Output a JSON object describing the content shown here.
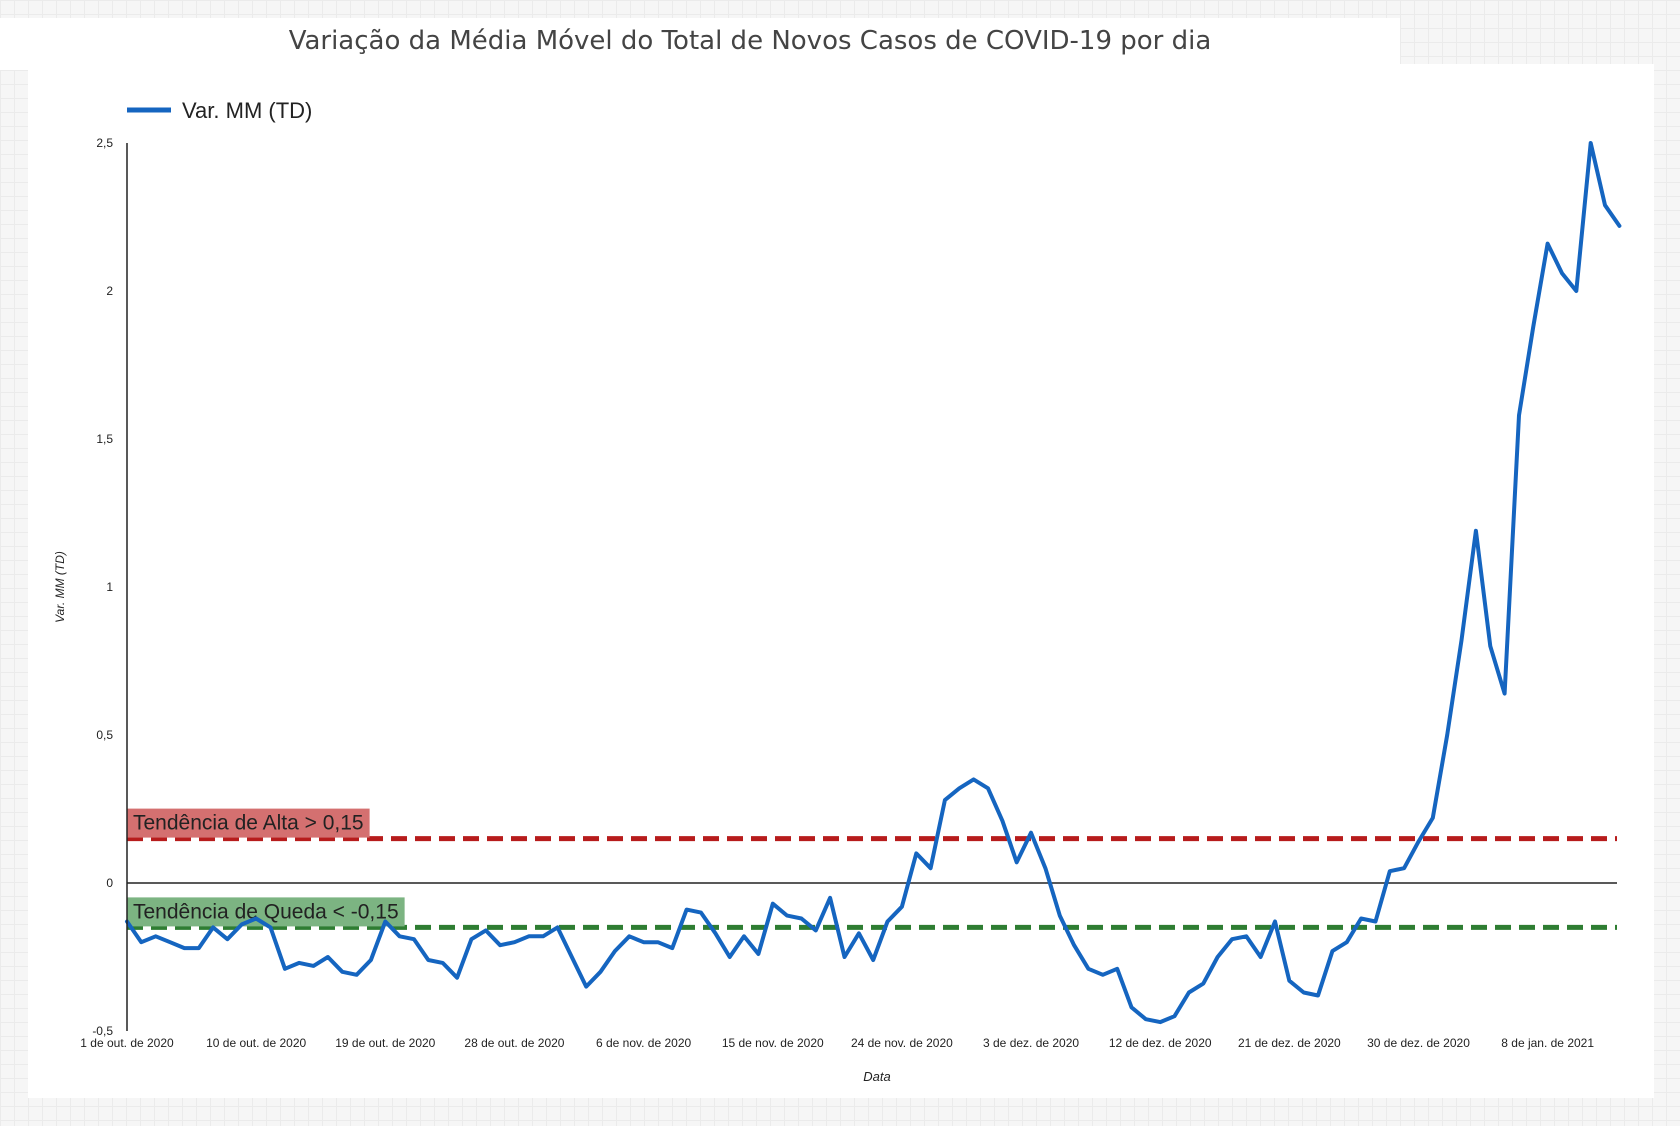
{
  "title": "Variação da Média Móvel do Total de Novos Casos de COVID-19 por dia",
  "legend": {
    "label": "Var. MM (TD)",
    "color": "#1565c0"
  },
  "chart_data": {
    "type": "line",
    "title": "Variação da Média Móvel do Total de Novos Casos de COVID-19 por dia",
    "xlabel": "Data",
    "ylabel": "Var. MM (TD)",
    "ylim": [
      -0.5,
      2.5
    ],
    "y_ticks": [
      "2,5",
      "2",
      "1,5",
      "1",
      "0,5",
      "0",
      "-0,5"
    ],
    "x_tick_labels": [
      "1 de out. de 2020",
      "10 de out. de 2020",
      "19 de out. de 2020",
      "28 de out. de 2020",
      "6 de nov. de 2020",
      "15 de nov. de 2020",
      "24 de nov. de 2020",
      "3 de dez. de 2020",
      "12 de dez. de 2020",
      "21 de dez. de 2020",
      "30 de dez. de 2020",
      "8 de jan. de 2021"
    ],
    "x_start": "2020-10-01",
    "legend_position": "top-left",
    "series": [
      {
        "name": "Var. MM (TD)",
        "color": "#1565c0",
        "values": [
          -0.13,
          -0.2,
          -0.18,
          -0.2,
          -0.22,
          -0.22,
          -0.15,
          -0.19,
          -0.14,
          -0.12,
          -0.15,
          -0.29,
          -0.27,
          -0.28,
          -0.25,
          -0.3,
          -0.31,
          -0.26,
          -0.13,
          -0.18,
          -0.19,
          -0.26,
          -0.27,
          -0.32,
          -0.19,
          -0.16,
          -0.21,
          -0.2,
          -0.18,
          -0.18,
          -0.15,
          -0.25,
          -0.35,
          -0.3,
          -0.23,
          -0.18,
          -0.2,
          -0.2,
          -0.22,
          -0.09,
          -0.1,
          -0.17,
          -0.25,
          -0.18,
          -0.24,
          -0.07,
          -0.11,
          -0.12,
          -0.16,
          -0.05,
          -0.25,
          -0.17,
          -0.26,
          -0.13,
          -0.08,
          0.1,
          0.05,
          0.28,
          0.32,
          0.35,
          0.32,
          0.21,
          0.07,
          0.17,
          0.05,
          -0.11,
          -0.21,
          -0.29,
          -0.31,
          -0.29,
          -0.42,
          -0.46,
          -0.47,
          -0.45,
          -0.37,
          -0.34,
          -0.25,
          -0.19,
          -0.18,
          -0.25,
          -0.13,
          -0.33,
          -0.37,
          -0.38,
          -0.23,
          -0.2,
          -0.12,
          -0.13,
          0.04,
          0.05,
          0.14,
          0.22,
          0.5,
          0.82,
          1.19,
          0.8,
          0.64,
          1.58,
          1.88,
          2.16,
          2.06,
          2.0,
          2.5,
          2.29,
          2.22
        ]
      }
    ],
    "reference_lines": [
      {
        "label": "Tendência de Alta > 0,15",
        "value": 0.15,
        "color": "#b71c1c",
        "label_bg": "#d47070"
      },
      {
        "label": "Tendência de Queda < -0,15",
        "value": -0.15,
        "color": "#2e7d32",
        "label_bg": "#7cb482"
      }
    ]
  }
}
